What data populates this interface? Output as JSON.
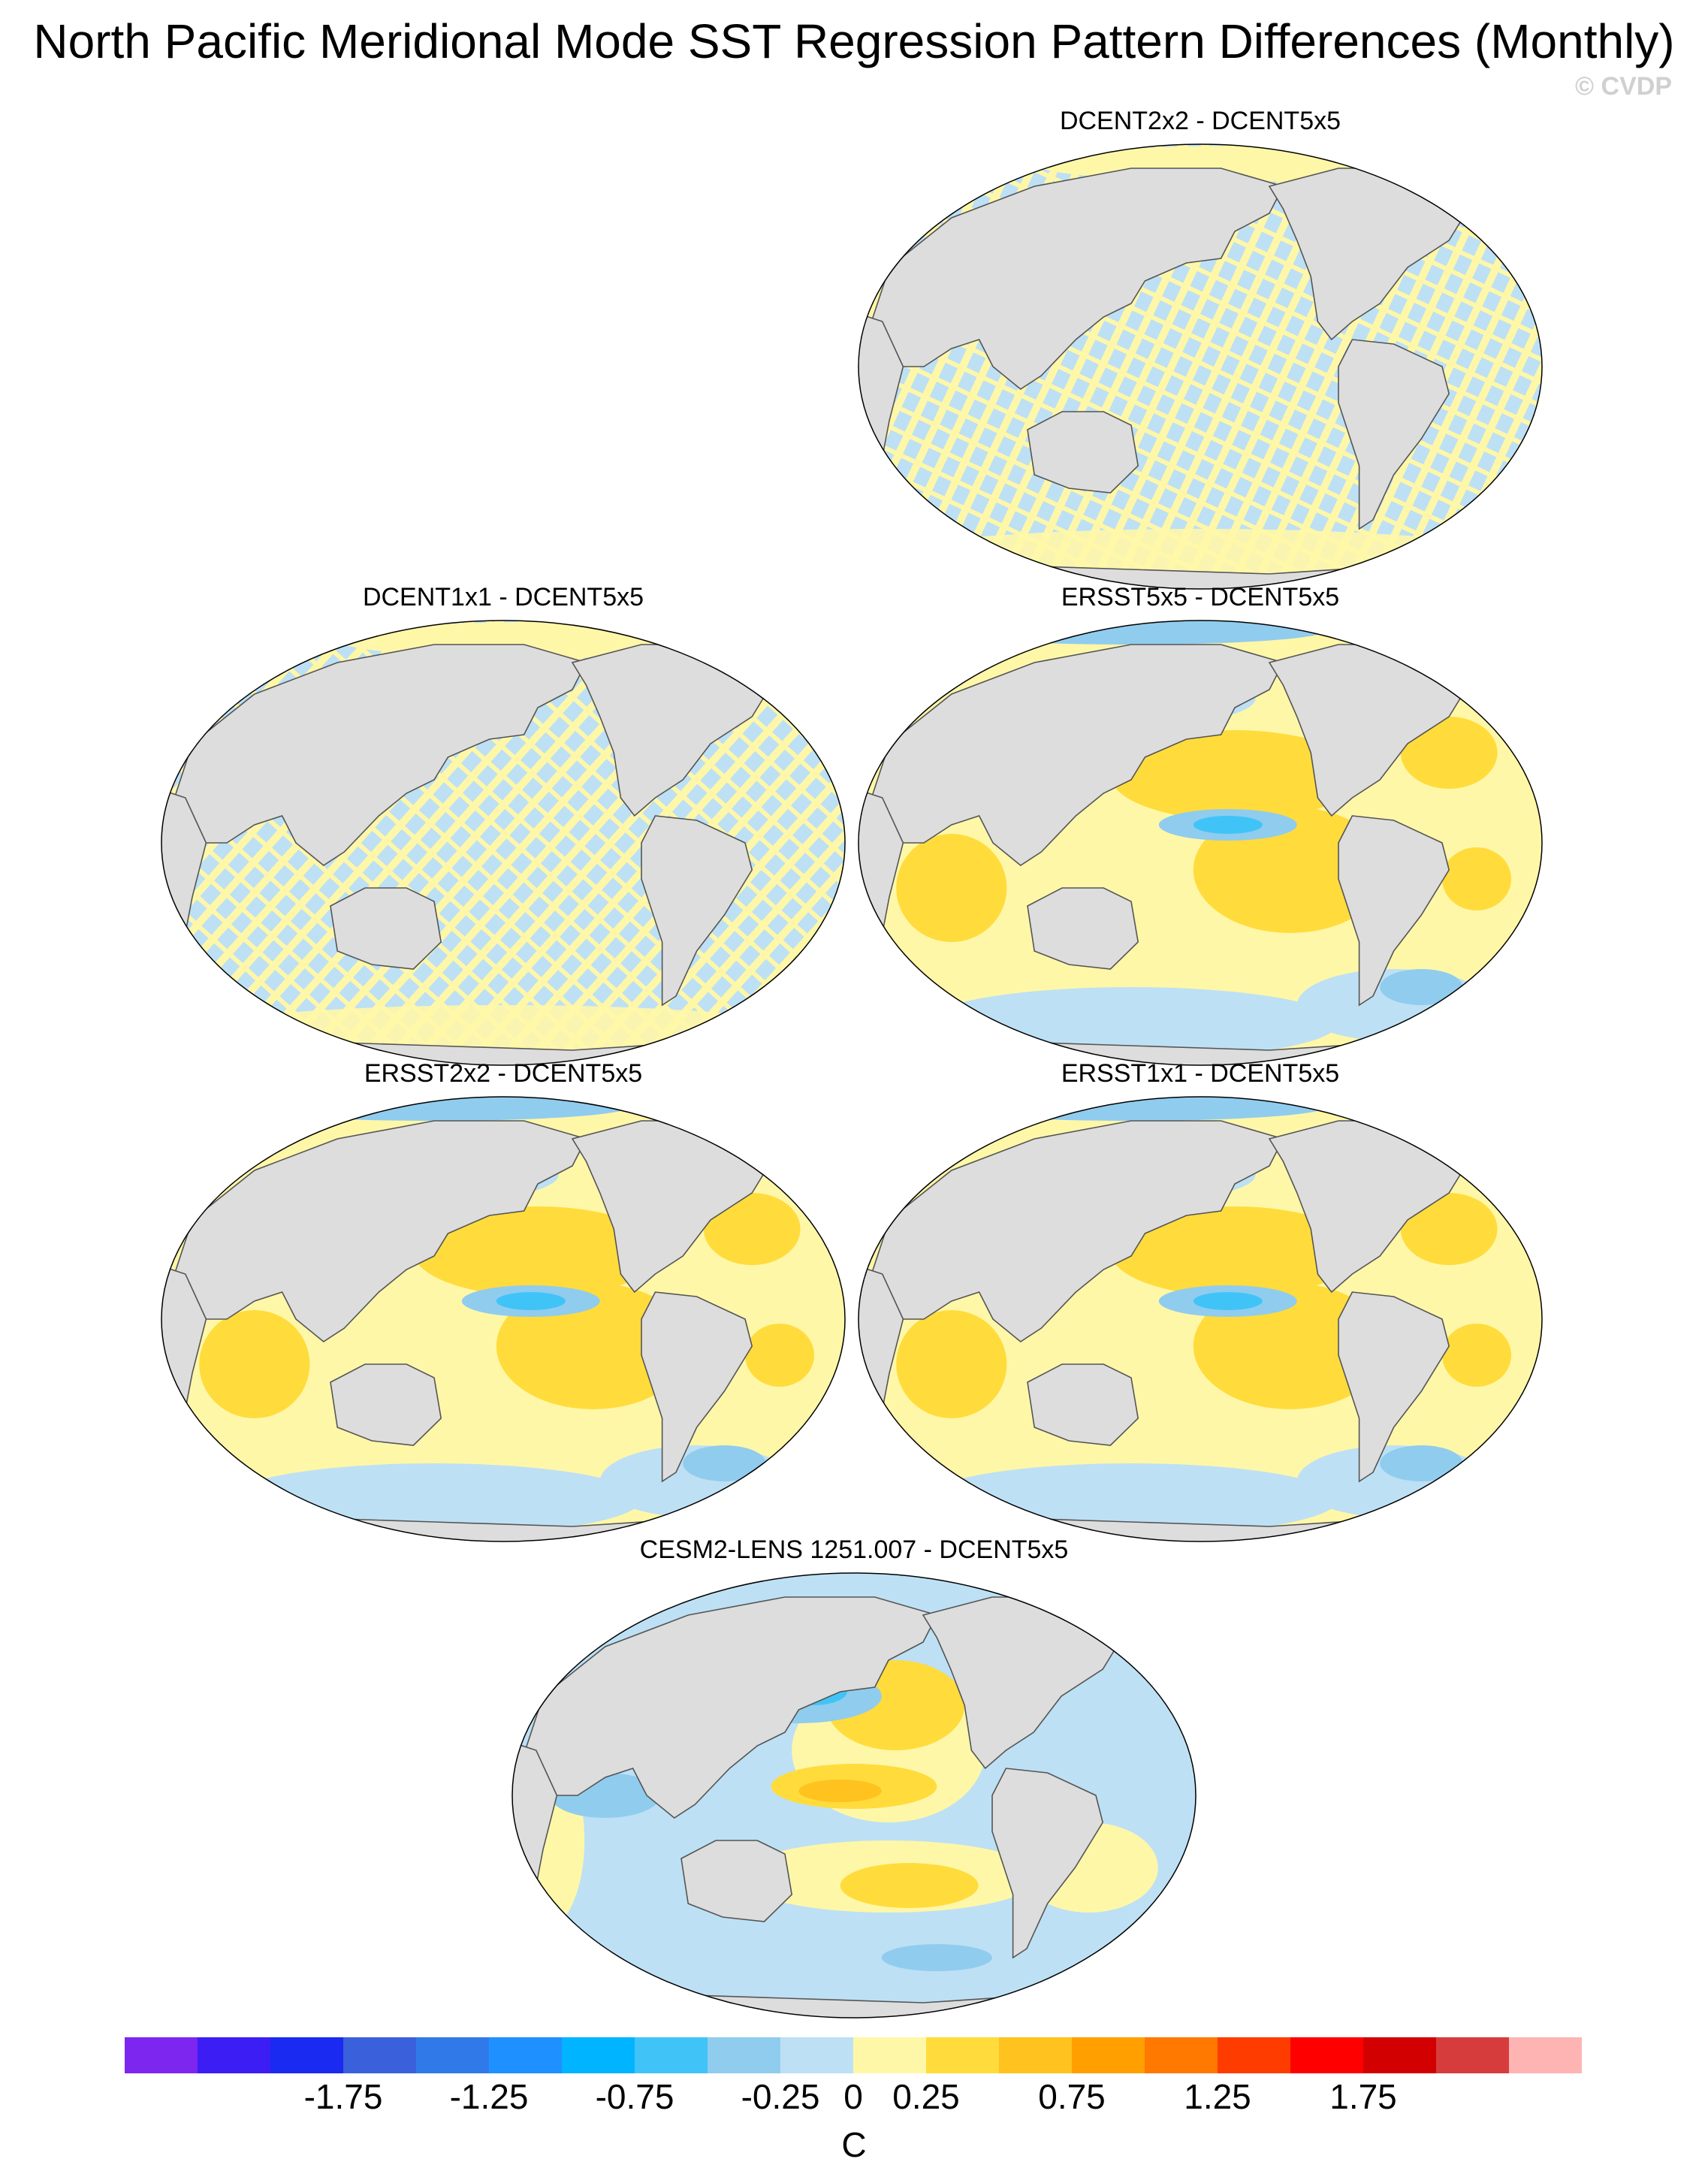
{
  "title": "North Pacific Meridional Mode SST Regression Pattern Differences (Monthly)",
  "credit": "© CVDP",
  "panels": [
    {
      "id": "p1",
      "title": "DCENT2x2 - DCENT5x5",
      "style": "noise"
    },
    {
      "id": "p2",
      "title": "DCENT1x1 - DCENT5x5",
      "style": "noise"
    },
    {
      "id": "p3",
      "title": "ERSST5x5 - DCENT5x5",
      "style": "ersst"
    },
    {
      "id": "p4",
      "title": "ERSST2x2 - DCENT5x5",
      "style": "ersst"
    },
    {
      "id": "p5",
      "title": "ERSST1x1 - DCENT5x5",
      "style": "ersst"
    },
    {
      "id": "p6",
      "title": "CESM2-LENS 1251.007 - DCENT5x5",
      "style": "cesm"
    }
  ],
  "colorbar": {
    "units": "C",
    "colors": [
      "#7d26f0",
      "#3c1ef5",
      "#1a2af0",
      "#3a60dc",
      "#2f7ae8",
      "#1e90ff",
      "#00b4ff",
      "#40c4f8",
      "#90ccee",
      "#bde0f4",
      "#fff7a8",
      "#ffdc3c",
      "#ffc21e",
      "#ffa000",
      "#ff7800",
      "#ff3c00",
      "#ff0000",
      "#d20000",
      "#d73c3c",
      "#ffb4b4"
    ],
    "labels": [
      "-1.75",
      "-1.25",
      "-0.75",
      "-0.25",
      "0",
      "0.25",
      "0.75",
      "1.25",
      "1.75"
    ],
    "label_positions": [
      3,
      5,
      7,
      9,
      10,
      11,
      13,
      15,
      17
    ]
  },
  "map_colors": {
    "land": "#dddddd",
    "coast": "#555555",
    "neg_light": "#bde0f4",
    "neg_mid": "#90ccee",
    "neg_strong": "#40c4f8",
    "pos_light": "#fff7a8",
    "pos_mid": "#ffdc3c",
    "pos_strong": "#ffc21e"
  }
}
